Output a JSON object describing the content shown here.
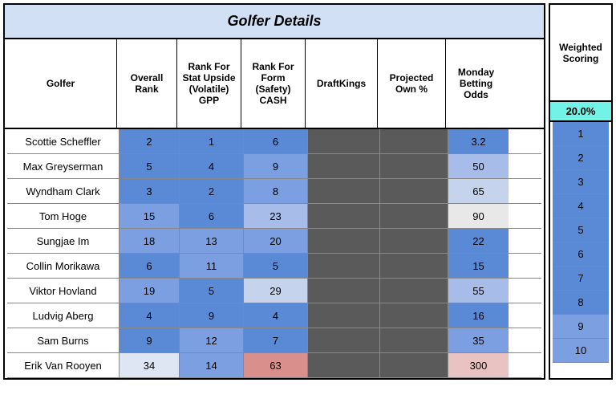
{
  "title": "Golfer Details",
  "side_header": "Weighted Scoring",
  "side_weight": "20.0%",
  "columns": [
    "Golfer",
    "Overall Rank",
    "Rank For Stat Upside (Volatile) GPP",
    "Rank For Form (Safety) CASH",
    "DraftKings",
    "Projected Own %",
    "Monday Betting Odds"
  ],
  "colors": {
    "title_bg": "#d2e0f5",
    "weight_bg": "#73f2e7",
    "blank": "#5a5a5a",
    "scale": {
      "deep_blue": "#5a89d6",
      "mid_blue": "#7b9fe0",
      "light_blue": "#a7bce8",
      "pale_blue": "#c5d3ed",
      "vpale_blue": "#dfe6f3",
      "neutral": "#e8e8e8",
      "light_red": "#e9c3c1",
      "mid_red": "#d98f8b"
    }
  },
  "rows": [
    {
      "golfer": "Scottie Scheffler",
      "overall": {
        "v": "2",
        "c": "#5a89d6"
      },
      "gpp": {
        "v": "1",
        "c": "#5a89d6"
      },
      "cash": {
        "v": "6",
        "c": "#5a89d6"
      },
      "odds": {
        "v": "3.2",
        "c": "#5a89d6"
      },
      "side": {
        "v": "1",
        "c": "#5a89d6"
      }
    },
    {
      "golfer": "Max Greyserman",
      "overall": {
        "v": "5",
        "c": "#5a89d6"
      },
      "gpp": {
        "v": "4",
        "c": "#5a89d6"
      },
      "cash": {
        "v": "9",
        "c": "#7b9fe0"
      },
      "odds": {
        "v": "50",
        "c": "#a7bce8"
      },
      "side": {
        "v": "2",
        "c": "#5a89d6"
      }
    },
    {
      "golfer": "Wyndham Clark",
      "overall": {
        "v": "3",
        "c": "#5a89d6"
      },
      "gpp": {
        "v": "2",
        "c": "#5a89d6"
      },
      "cash": {
        "v": "8",
        "c": "#7b9fe0"
      },
      "odds": {
        "v": "65",
        "c": "#c5d3ed"
      },
      "side": {
        "v": "3",
        "c": "#5a89d6"
      }
    },
    {
      "golfer": "Tom Hoge",
      "overall": {
        "v": "15",
        "c": "#7b9fe0"
      },
      "gpp": {
        "v": "6",
        "c": "#5a89d6"
      },
      "cash": {
        "v": "23",
        "c": "#a7bce8"
      },
      "odds": {
        "v": "90",
        "c": "#e8e8e8"
      },
      "side": {
        "v": "4",
        "c": "#5a89d6"
      }
    },
    {
      "golfer": "Sungjae Im",
      "overall": {
        "v": "18",
        "c": "#7b9fe0"
      },
      "gpp": {
        "v": "13",
        "c": "#7b9fe0"
      },
      "cash": {
        "v": "20",
        "c": "#7b9fe0"
      },
      "odds": {
        "v": "22",
        "c": "#5a89d6"
      },
      "side": {
        "v": "5",
        "c": "#5a89d6"
      }
    },
    {
      "golfer": "Collin Morikawa",
      "overall": {
        "v": "6",
        "c": "#5a89d6"
      },
      "gpp": {
        "v": "11",
        "c": "#7b9fe0"
      },
      "cash": {
        "v": "5",
        "c": "#5a89d6"
      },
      "odds": {
        "v": "15",
        "c": "#5a89d6"
      },
      "side": {
        "v": "6",
        "c": "#5a89d6"
      }
    },
    {
      "golfer": "Viktor Hovland",
      "overall": {
        "v": "19",
        "c": "#7b9fe0"
      },
      "gpp": {
        "v": "5",
        "c": "#5a89d6"
      },
      "cash": {
        "v": "29",
        "c": "#c5d3ed"
      },
      "odds": {
        "v": "55",
        "c": "#a7bce8"
      },
      "side": {
        "v": "7",
        "c": "#5a89d6"
      }
    },
    {
      "golfer": "Ludvig Aberg",
      "overall": {
        "v": "4",
        "c": "#5a89d6"
      },
      "gpp": {
        "v": "9",
        "c": "#5a89d6"
      },
      "cash": {
        "v": "4",
        "c": "#5a89d6"
      },
      "odds": {
        "v": "16",
        "c": "#5a89d6"
      },
      "side": {
        "v": "8",
        "c": "#5a89d6"
      }
    },
    {
      "golfer": "Sam Burns",
      "overall": {
        "v": "9",
        "c": "#5a89d6"
      },
      "gpp": {
        "v": "12",
        "c": "#7b9fe0"
      },
      "cash": {
        "v": "7",
        "c": "#5a89d6"
      },
      "odds": {
        "v": "35",
        "c": "#7b9fe0"
      },
      "side": {
        "v": "9",
        "c": "#7b9fe0"
      }
    },
    {
      "golfer": "Erik Van Rooyen",
      "overall": {
        "v": "34",
        "c": "#dfe6f3"
      },
      "gpp": {
        "v": "14",
        "c": "#7b9fe0"
      },
      "cash": {
        "v": "63",
        "c": "#d98f8b"
      },
      "odds": {
        "v": "300",
        "c": "#e9c3c1"
      },
      "side": {
        "v": "10",
        "c": "#7b9fe0"
      }
    }
  ]
}
